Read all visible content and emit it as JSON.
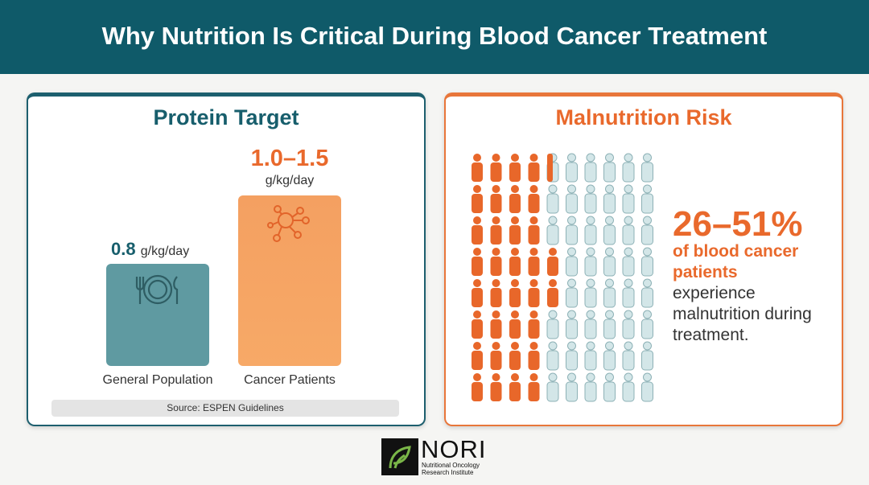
{
  "header": {
    "title": "Why Nutrition Is Critical During Blood Cancer Treatment"
  },
  "protein_panel": {
    "title": "Protein Target",
    "bars": [
      {
        "value": "0.8",
        "unit": "g/kg/day",
        "label": "General Population"
      },
      {
        "value": "1.0–1.5",
        "unit": "g/kg/day",
        "label": "Cancer Patients"
      }
    ],
    "source": "Source: ESPEN Guidelines"
  },
  "malnutrition_panel": {
    "title": "Malnutrition Risk",
    "stat": "26–51%",
    "highlight": "of blood cancer patients",
    "description": "experience malnutrition during treatment."
  },
  "logo": {
    "name": "NORI",
    "subtitle": "Nutritional Oncology Research Institute"
  }
}
